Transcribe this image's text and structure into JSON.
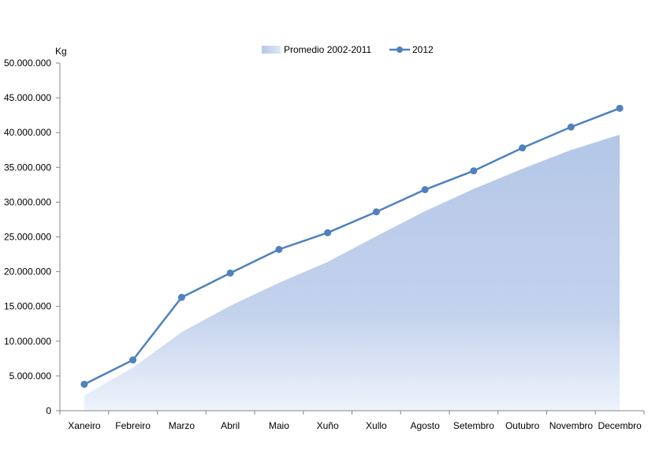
{
  "chart_data": {
    "type": "area",
    "unit_label": "Kg",
    "categories": [
      "Xaneiro",
      "Febreiro",
      "Marzo",
      "Abril",
      "Maio",
      "Xuño",
      "Xullo",
      "Agosto",
      "Setembro",
      "Outubro",
      "Novembro",
      "Decembro"
    ],
    "series": [
      {
        "name": "Promedio 2002-2011",
        "kind": "area",
        "color": "#b4c7e7",
        "values": [
          2200000,
          6200000,
          11300000,
          15100000,
          18400000,
          21400000,
          25100000,
          28700000,
          31900000,
          34800000,
          37500000,
          39700000
        ]
      },
      {
        "name": "2012",
        "kind": "line",
        "color": "#4f81bd",
        "values": [
          3800000,
          7300000,
          16300000,
          19800000,
          23200000,
          25600000,
          28600000,
          31800000,
          34500000,
          37800000,
          40800000,
          43500000
        ]
      }
    ],
    "y_ticks": [
      "0",
      "5.000.000",
      "10.000.000",
      "15.000.000",
      "20.000.000",
      "25.000.000",
      "30.000.000",
      "35.000.000",
      "40.000.000",
      "45.000.000",
      "50.000.000"
    ],
    "ylim": [
      0,
      50000000
    ],
    "grid": false,
    "legend_position": "top"
  }
}
